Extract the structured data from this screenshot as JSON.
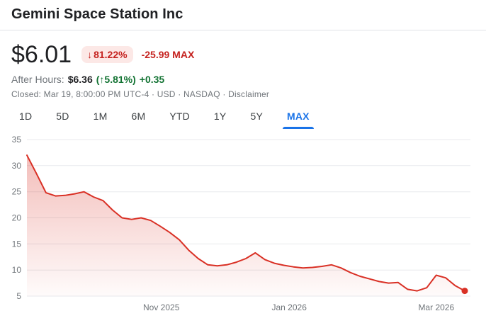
{
  "header": {
    "title": "Gemini Space Station Inc"
  },
  "quote": {
    "price": "$6.01",
    "change_arrow": "↓",
    "change_pct": "81.22%",
    "change_abs": "-25.99",
    "change_period": "MAX",
    "after_hours_label": "After Hours:",
    "after_hours_price": "$6.36",
    "after_hours_pct": "(↑5.81%)",
    "after_hours_abs": "+0.35",
    "status_text": "Closed: Mar 19, 8:00:00 PM UTC-4 · USD · NASDAQ ·",
    "disclaimer_label": "Disclaimer"
  },
  "tabs": [
    {
      "label": "1D",
      "selected": false
    },
    {
      "label": "5D",
      "selected": false
    },
    {
      "label": "1M",
      "selected": false
    },
    {
      "label": "6M",
      "selected": false
    },
    {
      "label": "YTD",
      "selected": false
    },
    {
      "label": "1Y",
      "selected": false
    },
    {
      "label": "5Y",
      "selected": false
    },
    {
      "label": "MAX",
      "selected": true
    }
  ],
  "colors": {
    "line": "#d93025",
    "area_top": "rgba(217,48,37,0.35)",
    "area_bottom": "rgba(217,48,37,0.02)",
    "badge_bg": "#fce8e6",
    "negative_text": "#c5221f",
    "positive_text": "#137333",
    "selected_tab": "#1a73e8",
    "grid": "#e8eaed",
    "axis_text": "#70757a"
  },
  "chart_data": {
    "type": "area",
    "title": "",
    "ylabel": "",
    "xlabel": "",
    "ylim": [
      5,
      35
    ],
    "yticks": [
      5,
      10,
      15,
      20,
      25,
      30,
      35
    ],
    "x_ticks": [
      {
        "label": "Nov 2025",
        "pos": 0.307
      },
      {
        "label": "Jan 2026",
        "pos": 0.599
      },
      {
        "label": "Mar 2026",
        "pos": 0.935
      }
    ],
    "grid": true,
    "legend": false,
    "values": [
      32,
      28.5,
      24.8,
      24.2,
      24.3,
      24.6,
      25.0,
      24.0,
      23.3,
      21.5,
      20.0,
      19.7,
      20.0,
      19.5,
      18.4,
      17.2,
      15.8,
      13.8,
      12.2,
      11.0,
      10.8,
      11.0,
      11.5,
      12.2,
      13.3,
      12.0,
      11.3,
      10.9,
      10.6,
      10.4,
      10.5,
      10.7,
      11.0,
      10.4,
      9.5,
      8.8,
      8.3,
      7.8,
      7.5,
      7.6,
      6.3,
      6.0,
      6.6,
      9.0,
      8.5,
      7.0,
      6.01
    ],
    "end_value": 6.01
  }
}
